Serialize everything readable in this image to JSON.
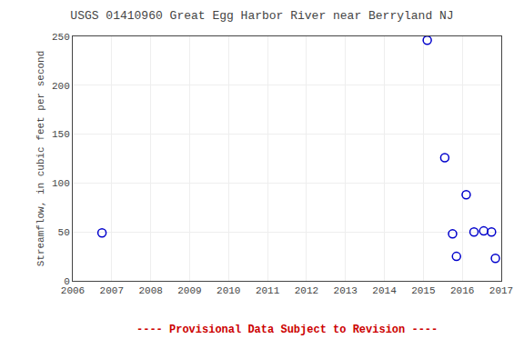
{
  "chart_data": {
    "type": "scatter",
    "title": "USGS 01410960 Great Egg Harbor River near Berryland NJ",
    "ylabel": "Streamflow, in cubic feet per second",
    "annotations": [
      {
        "text": "---- Provisional Data Subject to Revision ----",
        "color": "#cc0000"
      }
    ],
    "x": [
      2006.75,
      2015.1,
      2015.55,
      2015.75,
      2015.85,
      2016.1,
      2016.3,
      2016.55,
      2016.75,
      2016.85
    ],
    "values": [
      49,
      246,
      126,
      48,
      25,
      88,
      50,
      51,
      50,
      23
    ],
    "color": "#0000cc",
    "marker": "circle-open",
    "xlim": [
      2006,
      2017
    ],
    "ylim": [
      0,
      250
    ],
    "xticks": [
      2006,
      2007,
      2008,
      2009,
      2010,
      2011,
      2012,
      2013,
      2014,
      2015,
      2016,
      2017
    ],
    "yticks": [
      0,
      50,
      100,
      150,
      200,
      250
    ],
    "grid": true
  }
}
